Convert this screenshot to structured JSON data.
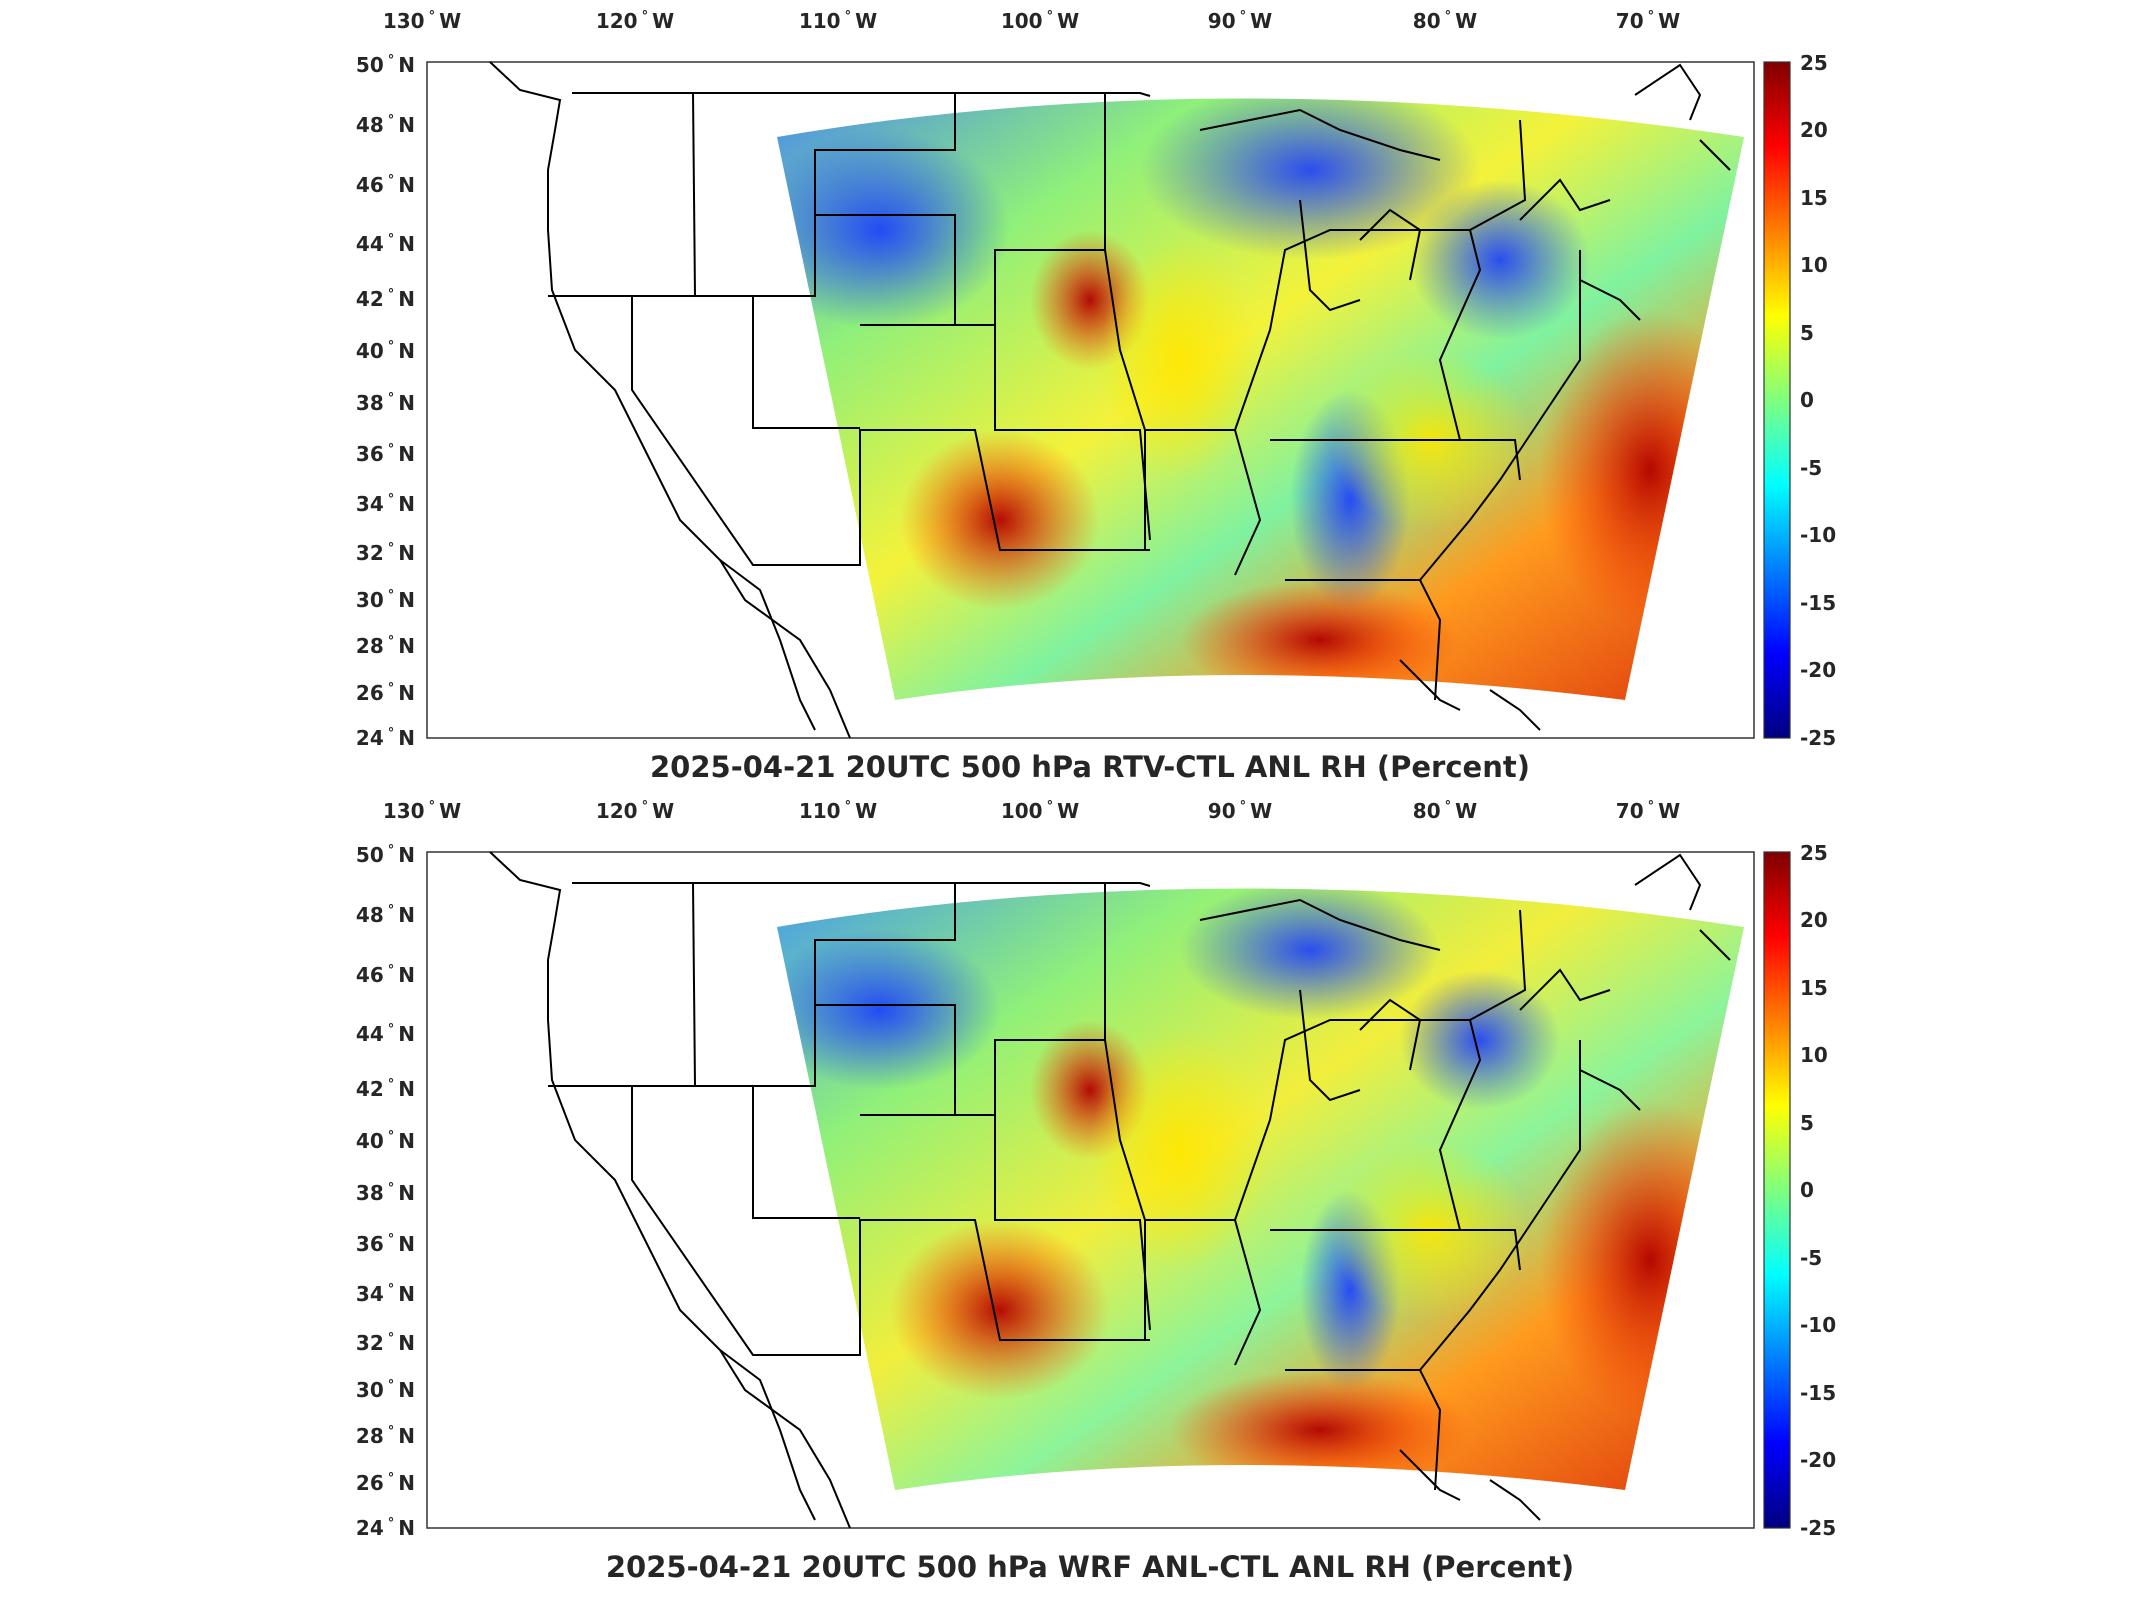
{
  "colorbar": {
    "colors": [
      "#00007f",
      "#0000ff",
      "#007fff",
      "#00ffff",
      "#7fff7f",
      "#ffff00",
      "#ff7f00",
      "#ff0000",
      "#7f0000"
    ],
    "ticks": [
      "25",
      "20",
      "15",
      "10",
      "5",
      "0",
      "-5",
      "-10",
      "-15",
      "-20",
      "-25"
    ]
  },
  "axes": {
    "lon_labels": [
      "130",
      "120",
      "110",
      "100",
      "90",
      "80",
      "70"
    ],
    "lon_suffix": "W",
    "lat_labels": [
      "50",
      "48",
      "46",
      "44",
      "42",
      "40",
      "38",
      "36",
      "34",
      "32",
      "30",
      "28",
      "26",
      "24"
    ],
    "lat_suffix": "N",
    "degree_symbol": "°"
  },
  "panels": [
    {
      "title": "2025-04-21 20UTC 500 hPa RTV-CTL ANL RH (Percent)",
      "variable": "RH difference RTV-CTL"
    },
    {
      "title": "2025-04-21 20UTC 500 hPa WRF ANL-CTL ANL RH (Percent)",
      "variable": "RH difference WRF ANL-CTL"
    }
  ],
  "chart_data": {
    "type": "heatmap",
    "map_extent": {
      "lon": [
        -131,
        -64
      ],
      "lat": [
        24,
        50
      ]
    },
    "color_range": [
      -25,
      25
    ],
    "colormap": "jet"
  }
}
